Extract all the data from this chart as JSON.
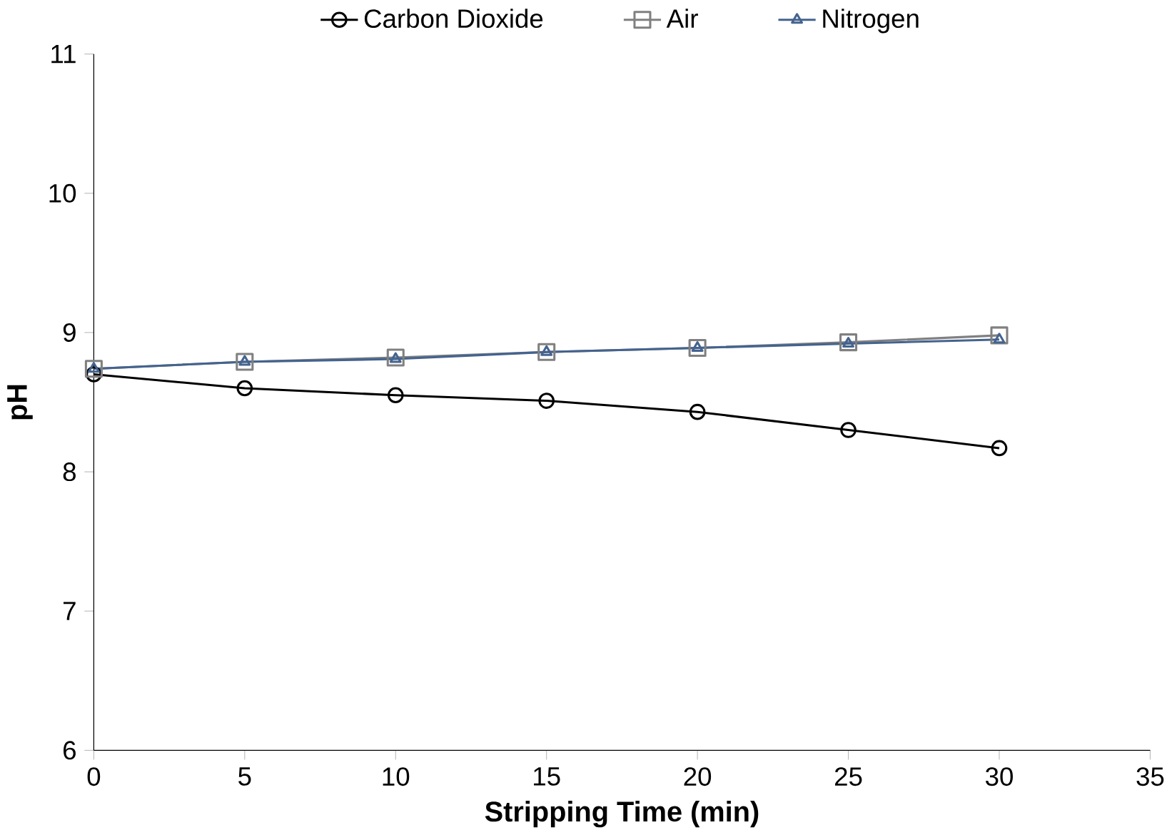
{
  "chart_data": {
    "type": "line",
    "xlabel": "Stripping Time (min)",
    "ylabel": "pH",
    "x": [
      0,
      5,
      10,
      15,
      20,
      25,
      30
    ],
    "series": [
      {
        "name": "Carbon Dioxide",
        "color": "#000000",
        "marker": "circle",
        "values": [
          8.7,
          8.6,
          8.55,
          8.51,
          8.43,
          8.3,
          8.17
        ]
      },
      {
        "name": "Air",
        "color": "#808080",
        "marker": "square",
        "values": [
          8.74,
          8.79,
          8.82,
          8.86,
          8.89,
          8.93,
          8.98
        ]
      },
      {
        "name": "Nitrogen",
        "color": "#44638f",
        "marker": "triangle",
        "values": [
          8.74,
          8.79,
          8.81,
          8.86,
          8.89,
          8.92,
          8.95
        ]
      }
    ],
    "xlim": [
      0,
      35
    ],
    "xticks": [
      0,
      5,
      10,
      15,
      20,
      25,
      30,
      35
    ],
    "ylim": [
      6,
      11
    ],
    "yticks": [
      6,
      7,
      8,
      9,
      10,
      11
    ],
    "legend": "top",
    "grid": false
  }
}
